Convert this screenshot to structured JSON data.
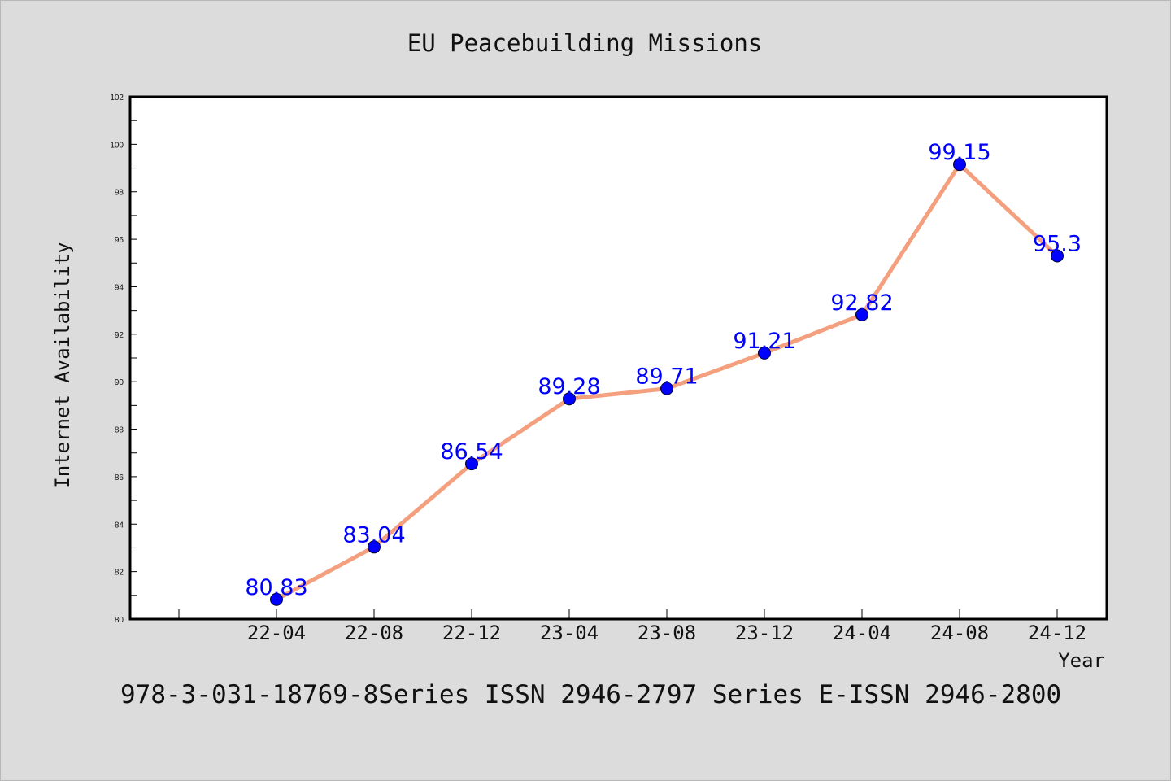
{
  "chart_data": {
    "type": "line",
    "title": "EU Peacebuilding Missions",
    "xlabel": "Year",
    "ylabel": "Internet Availability",
    "categories": [
      "22-04",
      "22-08",
      "22-12",
      "23-04",
      "23-08",
      "23-12",
      "24-04",
      "24-08",
      "24-12"
    ],
    "series": [
      {
        "values": [
          80.83,
          83.04,
          86.54,
          89.28,
          89.71,
          91.21,
          92.82,
          99.15,
          95.3
        ],
        "labels": [
          "80.83",
          "83.04",
          "86.54",
          "89.28",
          "89.71",
          "91.21",
          "92.82",
          "99.15",
          "95.3"
        ],
        "line_color": "#f4a07e",
        "marker_color": "#0000ff"
      }
    ],
    "ylim": [
      80,
      102
    ],
    "yticks": [
      80,
      82,
      84,
      86,
      88,
      90,
      92,
      94,
      96,
      98,
      100,
      102
    ],
    "grid": false,
    "legend": "none"
  },
  "footer": "978-3-031-18769-8Series ISSN 2946-2797 Series E-ISSN 2946-2800",
  "colors": {
    "background": "#dcdcdc",
    "plot_background": "#ffffff",
    "label_color": "#0000ff"
  }
}
